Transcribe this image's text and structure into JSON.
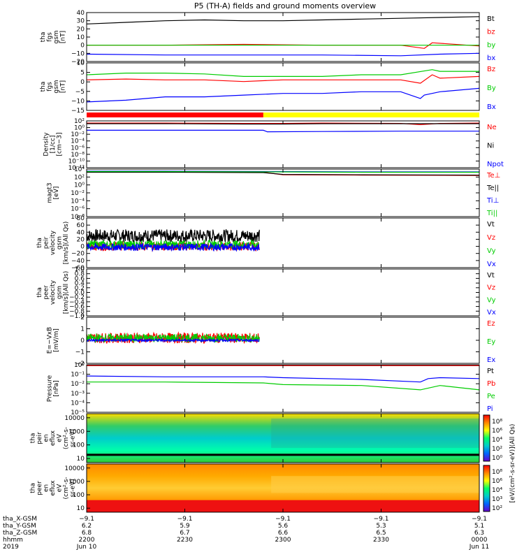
{
  "title": "P5 (TH-A) fields and ground moments overview",
  "chart_data": [
    {
      "id": "fgs_gsm",
      "type": "line",
      "ylabel_lines": [
        "tha",
        "fgs",
        "gsm",
        "[nT]"
      ],
      "yticks": [
        "40",
        "30",
        "20",
        "10",
        "0",
        "−10",
        "−20"
      ],
      "ylim": [
        -20,
        40
      ],
      "series": [
        {
          "name": "Bt",
          "color": "#000000",
          "x": [
            0,
            0.1,
            0.2,
            0.3,
            0.4,
            0.5,
            0.6,
            0.7,
            0.8,
            0.9,
            1.0
          ],
          "y": [
            26,
            28,
            30,
            31,
            30,
            30,
            31,
            32,
            33,
            34,
            35
          ]
        },
        {
          "name": "bz",
          "color": "#ff0000",
          "x": [
            0,
            0.2,
            0.4,
            0.6,
            0.8,
            0.86,
            0.88,
            1.0
          ],
          "y": [
            0,
            0,
            1,
            0,
            0,
            -4,
            3,
            -1
          ]
        },
        {
          "name": "by",
          "color": "#00cc00",
          "x": [
            0,
            0.2,
            0.4,
            0.6,
            0.8,
            1.0
          ],
          "y": [
            0,
            0,
            0,
            0,
            0,
            0
          ]
        },
        {
          "name": "bx",
          "color": "#0000ff",
          "x": [
            0,
            0.2,
            0.4,
            0.6,
            0.8,
            0.9,
            1.0
          ],
          "y": [
            -11,
            -12,
            -12,
            -12,
            -13,
            -11,
            -10
          ]
        }
      ]
    },
    {
      "id": "fgs_gsm_zoom",
      "type": "line",
      "ylabel_lines": [
        "tha",
        "fgs",
        "gsm",
        "[nT]"
      ],
      "yticks": [
        "10",
        "5",
        "0",
        "−5",
        "−10",
        "−15"
      ],
      "ylim": [
        -18,
        10
      ],
      "series": [
        {
          "name": "Bz",
          "color": "#ff0000",
          "x": [
            0,
            0.1,
            0.2,
            0.3,
            0.4,
            0.5,
            0.6,
            0.7,
            0.8,
            0.85,
            0.88,
            0.9,
            1.0
          ],
          "y": [
            0,
            0.5,
            0,
            0,
            -1,
            0,
            0,
            0,
            0,
            -2,
            3,
            1,
            2
          ]
        },
        {
          "name": "By",
          "color": "#00cc00",
          "x": [
            0,
            0.1,
            0.2,
            0.3,
            0.4,
            0.5,
            0.6,
            0.7,
            0.8,
            0.88,
            0.9,
            1.0
          ],
          "y": [
            3,
            4,
            4,
            3.5,
            2,
            2,
            2,
            3,
            3,
            6,
            5,
            5
          ]
        },
        {
          "name": "Bx",
          "color": "#0000ff",
          "x": [
            0,
            0.1,
            0.2,
            0.3,
            0.4,
            0.5,
            0.6,
            0.7,
            0.8,
            0.85,
            0.86,
            0.9,
            1.0
          ],
          "y": [
            -13,
            -12,
            -10,
            -10,
            -9,
            -8,
            -8,
            -7,
            -7,
            -11,
            -9,
            -7,
            -5
          ]
        }
      ]
    },
    {
      "id": "density",
      "type": "line",
      "ylabel_lines": [
        "Density",
        "[1/cc]",
        "[cm−3]"
      ],
      "yticks": [
        "10²",
        "10⁰",
        "10⁻²",
        "10⁻⁴",
        "10⁻⁶",
        "10⁻⁸",
        "10⁻¹⁰",
        "10⁻¹²"
      ],
      "ylim": [
        -13,
        2
      ],
      "yscale": "log",
      "series": [
        {
          "name": "Ne",
          "color": "#ff0000",
          "x": [
            0,
            0.2,
            0.4,
            0.5,
            0.6,
            0.8,
            0.85,
            0.9,
            1.0
          ],
          "y": [
            1.3,
            1.3,
            1.2,
            1.2,
            1.3,
            1.2,
            0.8,
            1.2,
            1.3
          ]
        },
        {
          "name": "Ni",
          "color": "#000000",
          "x": [
            0,
            0.2,
            0.4,
            0.5,
            0.6,
            0.8,
            1.0
          ],
          "y": [
            1.1,
            1.1,
            1.0,
            1.0,
            1.1,
            1.1,
            1.1
          ]
        },
        {
          "name": "Npot",
          "color": "#0000ff",
          "x": [
            0,
            0.2,
            0.4,
            0.45,
            0.46,
            0.6,
            0.8,
            1.0
          ],
          "y": [
            -1.0,
            -1.0,
            -1.0,
            -1.0,
            -1.5,
            -1.4,
            -1.3,
            -1.3
          ]
        }
      ]
    },
    {
      "id": "temperature",
      "type": "line",
      "ylabel_lines": [
        "magt3",
        "[eV]"
      ],
      "yticks": [
        "10⁴",
        "10²",
        "10⁰",
        "10⁻²",
        "10⁻⁴",
        "10⁻⁶",
        "10⁻⁸"
      ],
      "ylim": [
        -9,
        4.5
      ],
      "yscale": "log",
      "series": [
        {
          "name": "Te⊥",
          "color": "#ff0000",
          "x": [
            0,
            0.2,
            0.45,
            0.5,
            0.7,
            1.0
          ],
          "y": [
            3.7,
            3.7,
            3.6,
            2.9,
            2.8,
            2.7
          ]
        },
        {
          "name": "Te||",
          "color": "#000000",
          "x": [
            0,
            0.2,
            0.45,
            0.5,
            0.7,
            1.0
          ],
          "y": [
            3.6,
            3.6,
            3.5,
            3.0,
            2.9,
            2.8
          ]
        },
        {
          "name": "Ti⊥",
          "color": "#0000ff",
          "x": [
            0,
            0.2,
            0.5,
            0.7,
            1.0
          ],
          "y": [
            3.9,
            3.9,
            3.8,
            3.7,
            3.7
          ]
        },
        {
          "name": "Ti||",
          "color": "#00cc00",
          "x": [
            0,
            0.2,
            0.5,
            0.7,
            1.0
          ],
          "y": [
            3.8,
            3.8,
            3.7,
            3.6,
            3.6
          ]
        }
      ]
    },
    {
      "id": "peir_velocity",
      "type": "line",
      "ylabel_lines": [
        "tha",
        "peir",
        "velocity",
        "gsm",
        "[km/s](All Qs)"
      ],
      "yticks": [
        "80",
        "60",
        "40",
        "20",
        "0",
        "−20",
        "−40",
        "−60"
      ],
      "ylim": [
        -60,
        80
      ],
      "xmax_data": 0.44,
      "series": [
        {
          "name": "Vt",
          "color": "#000000",
          "x": [
            0,
            0.44
          ],
          "y": [
            30,
            30
          ],
          "noise": 18
        },
        {
          "name": "Vz",
          "color": "#ff0000",
          "x": [
            0,
            0.44
          ],
          "y": [
            0,
            0
          ],
          "noise": 12
        },
        {
          "name": "Vy",
          "color": "#00cc00",
          "x": [
            0,
            0.44
          ],
          "y": [
            5,
            5
          ],
          "noise": 12
        },
        {
          "name": "Vx",
          "color": "#0000ff",
          "x": [
            0,
            0.44
          ],
          "y": [
            -2,
            -2
          ],
          "noise": 10
        }
      ]
    },
    {
      "id": "peer_velocity",
      "type": "line",
      "ylabel_lines": [
        "tha",
        "peer",
        "velocity",
        "gsm",
        "[km/s](All Qs)"
      ],
      "yticks": [
        "1.0",
        "0.8",
        "0.6",
        "0.4",
        "0.2",
        "0.0",
        "−0.2",
        "−0.4",
        "−0.6",
        "−0.8",
        "−1.0"
      ],
      "ylim": [
        -1,
        1
      ],
      "series": [
        {
          "name": "Vt",
          "color": "#000000",
          "x": [],
          "y": []
        },
        {
          "name": "Vz",
          "color": "#ff0000",
          "x": [],
          "y": []
        },
        {
          "name": "Vy",
          "color": "#00cc00",
          "x": [],
          "y": []
        },
        {
          "name": "Vx",
          "color": "#0000ff",
          "x": [],
          "y": []
        }
      ]
    },
    {
      "id": "efield",
      "type": "line",
      "ylabel_lines": [
        "E=−VxB",
        "[mV/m]"
      ],
      "yticks": [
        "2",
        "1",
        "0",
        "−1",
        "−2"
      ],
      "ylim": [
        -2,
        2
      ],
      "xmax_data": 0.44,
      "series": [
        {
          "name": "Ez",
          "color": "#ff0000",
          "x": [
            0,
            0.44
          ],
          "y": [
            0.2,
            0.2
          ],
          "noise": 0.45
        },
        {
          "name": "Ey",
          "color": "#00cc00",
          "x": [
            0,
            0.44
          ],
          "y": [
            0.2,
            0.2
          ],
          "noise": 0.35
        },
        {
          "name": "Ex",
          "color": "#0000ff",
          "x": [
            0,
            0.44
          ],
          "y": [
            0,
            0
          ],
          "noise": 0.1
        }
      ]
    },
    {
      "id": "pressure",
      "type": "line",
      "ylabel_lines": [
        "Pressure",
        "[nPa]"
      ],
      "yticks": [
        "10⁰",
        "10⁻¹",
        "10⁻²",
        "10⁻³",
        "10⁻⁴",
        "10⁻⁵"
      ],
      "ylim": [
        -5.5,
        0
      ],
      "yscale": "log",
      "series": [
        {
          "name": "Pt",
          "color": "#000000",
          "x": [
            0,
            1.0
          ],
          "y": [
            -0.1,
            -0.1
          ]
        },
        {
          "name": "Pb",
          "color": "#ff0000",
          "x": [
            0,
            1.0
          ],
          "y": [
            -0.1,
            -0.1
          ]
        },
        {
          "name": "Pe",
          "color": "#00cc00",
          "x": [
            0,
            0.2,
            0.45,
            0.5,
            0.7,
            0.85,
            0.87,
            0.9,
            1.0
          ],
          "y": [
            -2,
            -2,
            -2.1,
            -2.3,
            -2.4,
            -2.9,
            -2.7,
            -2.4,
            -2.9
          ]
        },
        {
          "name": "Pi",
          "color": "#0000ff",
          "x": [
            0,
            0.2,
            0.45,
            0.5,
            0.7,
            0.85,
            0.87,
            0.9,
            1.0
          ],
          "y": [
            -1.3,
            -1.4,
            -1.4,
            -1.5,
            -1.7,
            -2.0,
            -1.6,
            -1.5,
            -1.6
          ]
        }
      ]
    },
    {
      "id": "peir_spectrogram",
      "type": "heatmap",
      "ylabel_lines": [
        "tha",
        "peir",
        "en",
        "eflux",
        "eV",
        "(cm²-s-",
        "sr-eV)"
      ],
      "yticks": [
        "10000",
        "1000",
        "100",
        "10"
      ],
      "yscale": "log",
      "ylim": [
        5,
        20000
      ]
    },
    {
      "id": "peer_spectrogram",
      "type": "heatmap",
      "ylabel_lines": [
        "tha",
        "peer",
        "en",
        "eflux",
        "eV",
        "(cm²-s-",
        "sr-eV)"
      ],
      "yticks": [
        "10000",
        "1000",
        "100",
        "10"
      ],
      "yscale": "log",
      "ylim": [
        5,
        20000
      ]
    }
  ],
  "colorbar": {
    "label": "[eV/(cm²-s-sr-eV)](All Qs)",
    "upper_ticks": [
      "10⁸",
      "10⁶",
      "10⁴",
      "10²",
      "10⁰"
    ],
    "lower_ticks": [
      "10⁸",
      "10⁶",
      "10⁴",
      "10³",
      "10²"
    ]
  },
  "mode_bar": {
    "colors": [
      "#ff0000",
      "#ffff00"
    ],
    "switch_x": 0.45
  },
  "ephemeris": {
    "rows": [
      {
        "label": "tha_X-GSM",
        "values": [
          "−9.1",
          "−9.1",
          "−9.1",
          "−9.1",
          "−9.1"
        ]
      },
      {
        "label": "tha_Y-GSM",
        "values": [
          "6.2",
          "5.9",
          "5.6",
          "5.3",
          "5.1"
        ]
      },
      {
        "label": "tha_Z-GSM",
        "values": [
          "6.8",
          "6.7",
          "6.6",
          "6.5",
          "6.3"
        ]
      },
      {
        "label": "hhmm",
        "values": [
          "2200",
          "2230",
          "2300",
          "2330",
          "0000"
        ]
      },
      {
        "label": "2019",
        "values": [
          "Jun 10",
          "",
          "",
          "",
          "Jun 11"
        ]
      }
    ]
  }
}
